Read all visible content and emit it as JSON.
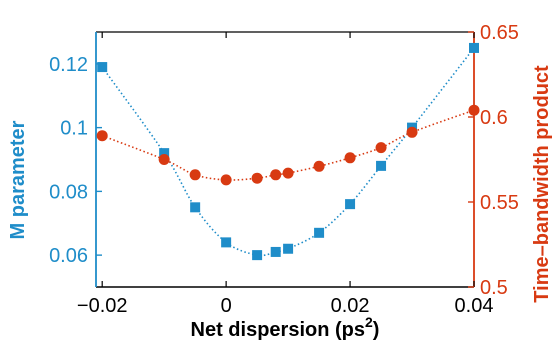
{
  "chart_data": {
    "type": "scatter",
    "xlabel": "Net dispersion (ps",
    "xlabel_sup": "2",
    "xlabel_end": ")",
    "ylabel_left": "M parameter",
    "ylabel_right": "Time–bandwidth product",
    "xlim": [
      -0.021,
      0.04
    ],
    "ylim_left": [
      0.05,
      0.13
    ],
    "ylim_right": [
      0.5,
      0.65
    ],
    "x_ticks": [
      -0.02,
      0,
      0.02,
      0.04
    ],
    "x_tick_labels": [
      "−0.02",
      "0",
      "0.02",
      "0.04"
    ],
    "left_ticks": [
      0.06,
      0.08,
      0.1,
      0.12
    ],
    "left_tick_labels": [
      "0.06",
      "0.08",
      "0.1",
      "0.12"
    ],
    "right_ticks": [
      0.5,
      0.55,
      0.6,
      0.65
    ],
    "right_tick_labels": [
      "0.5",
      "0.55",
      "0.6",
      "0.65"
    ],
    "grid": false,
    "series": [
      {
        "axis": "left",
        "marker": "square",
        "color": "#1f8dc9",
        "x": [
          -0.02,
          -0.01,
          -0.005,
          0,
          0.005,
          0.008,
          0.01,
          0.015,
          0.02,
          0.025,
          0.03,
          0.04
        ],
        "y": [
          0.119,
          0.092,
          0.075,
          0.064,
          0.06,
          0.061,
          0.062,
          0.067,
          0.076,
          0.088,
          0.1,
          0.125
        ]
      },
      {
        "axis": "right",
        "marker": "circle",
        "color": "#d83a12",
        "x": [
          -0.02,
          -0.01,
          -0.005,
          0,
          0.005,
          0.008,
          0.01,
          0.015,
          0.02,
          0.025,
          0.03,
          0.04
        ],
        "y": [
          0.589,
          0.575,
          0.566,
          0.563,
          0.564,
          0.566,
          0.567,
          0.571,
          0.576,
          0.582,
          0.591,
          0.604
        ]
      }
    ]
  },
  "colors": {
    "left_axis": "#1f8dc9",
    "right_axis": "#d83a12",
    "frame": "#000000"
  }
}
